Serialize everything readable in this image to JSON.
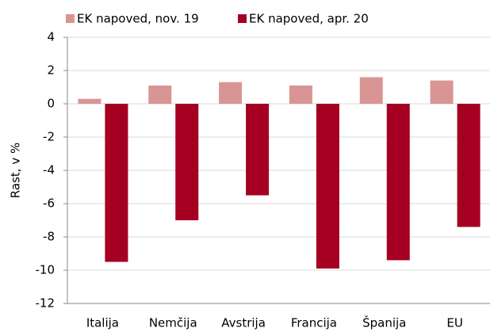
{
  "chart_data": {
    "type": "bar",
    "y_label": "Rast, v %",
    "categories": [
      "Italija",
      "Nemčija",
      "Avstrija",
      "Francija",
      "Španija",
      "EU"
    ],
    "series": [
      {
        "name": "EK napoved, nov. 19",
        "color": "#d99594",
        "values": [
          0.3,
          1.1,
          1.3,
          1.1,
          1.6,
          1.4
        ]
      },
      {
        "name": "EK napoved, apr. 20",
        "color": "#a50021",
        "values": [
          -9.5,
          -7.0,
          -5.5,
          -9.9,
          -9.4,
          -7.4
        ]
      }
    ],
    "ylim": [
      -12,
      4
    ],
    "yticks": [
      -12,
      -10,
      -8,
      -6,
      -4,
      -2,
      0,
      2,
      4
    ],
    "grid": true,
    "legend": "top"
  }
}
